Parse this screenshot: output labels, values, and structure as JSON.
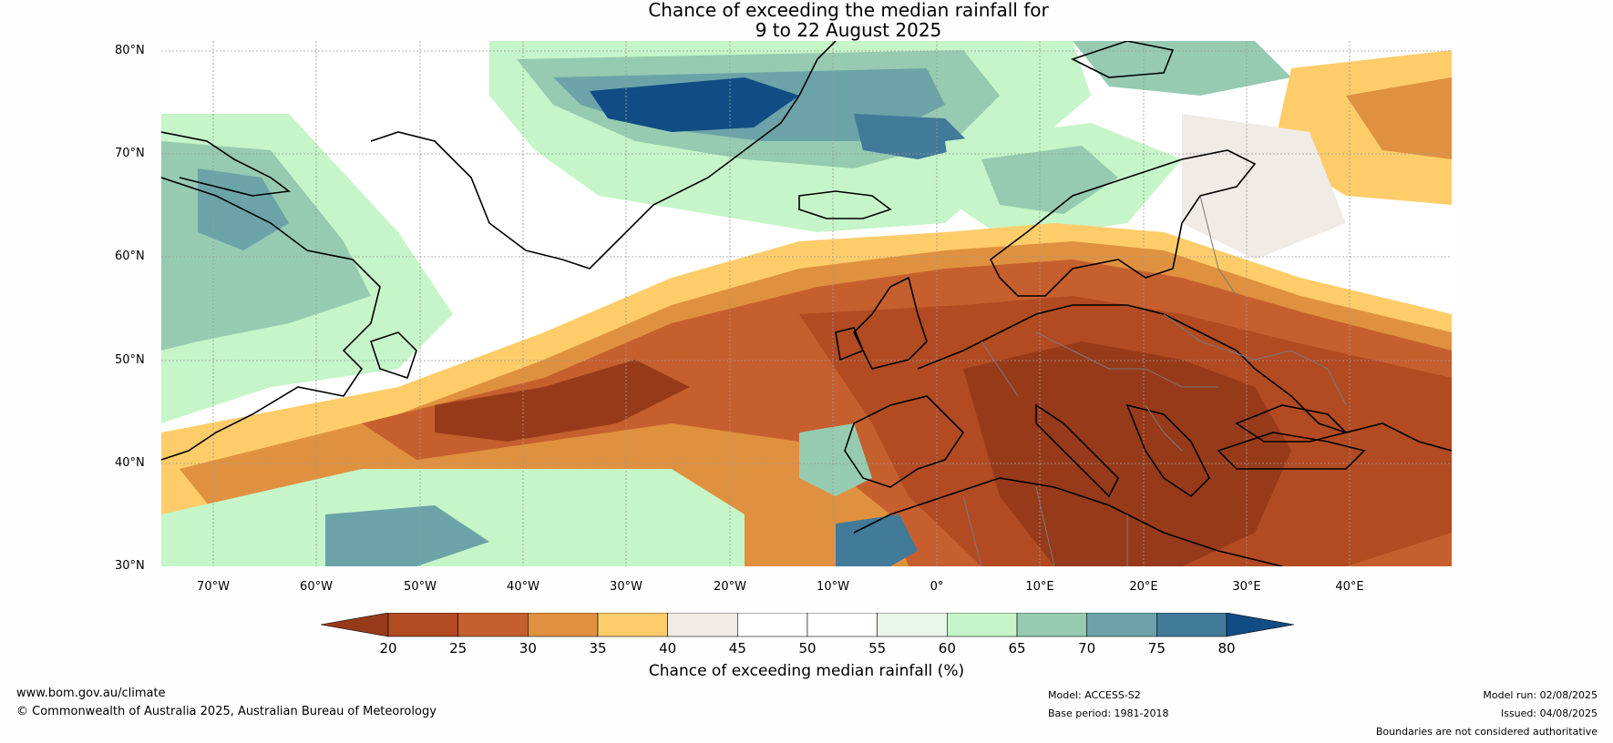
{
  "title": {
    "line1": "Chance of exceeding the median rainfall for",
    "line2": "9 to 22 August 2025"
  },
  "map": {
    "latitude_labels": [
      "80°N",
      "70°N",
      "60°N",
      "50°N",
      "40°N",
      "30°N"
    ],
    "longitude_labels": [
      "70°W",
      "60°W",
      "50°W",
      "40°W",
      "30°W",
      "20°W",
      "10°W",
      "0°",
      "10°E",
      "20°E",
      "30°E",
      "40°E"
    ],
    "colors": {
      "ocean_base": "#ffffff",
      "coast": "#000000",
      "borders": "#7a7a7a",
      "grid": "#9a9a9a"
    }
  },
  "colorbar": {
    "ticks": [
      "20",
      "25",
      "30",
      "35",
      "40",
      "45",
      "50",
      "55",
      "60",
      "65",
      "70",
      "75",
      "80"
    ],
    "colors": [
      "#973a1a",
      "#b24a22",
      "#c65f2e",
      "#e0913f",
      "#fecd6a",
      "#f0ebe5",
      "#ffffff",
      "#ffffff",
      "#eaf6e9",
      "#c5f5c8",
      "#96cbb1",
      "#6ba3a9",
      "#427a9a",
      "#114d84"
    ],
    "label": "Chance of exceeding median rainfall (%)"
  },
  "footer": {
    "website": "www.bom.gov.au/climate",
    "copyright": "© Commonwealth of Australia 2025, Australian Bureau of Meteorology",
    "model": "Model: ACCESS-S2",
    "base_period": "Base period: 1981-2018",
    "model_run": "Model run: 02/08/2025",
    "issued": "Issued: 04/08/2025",
    "disclaimer": "Boundaries are not considered authoritative"
  }
}
